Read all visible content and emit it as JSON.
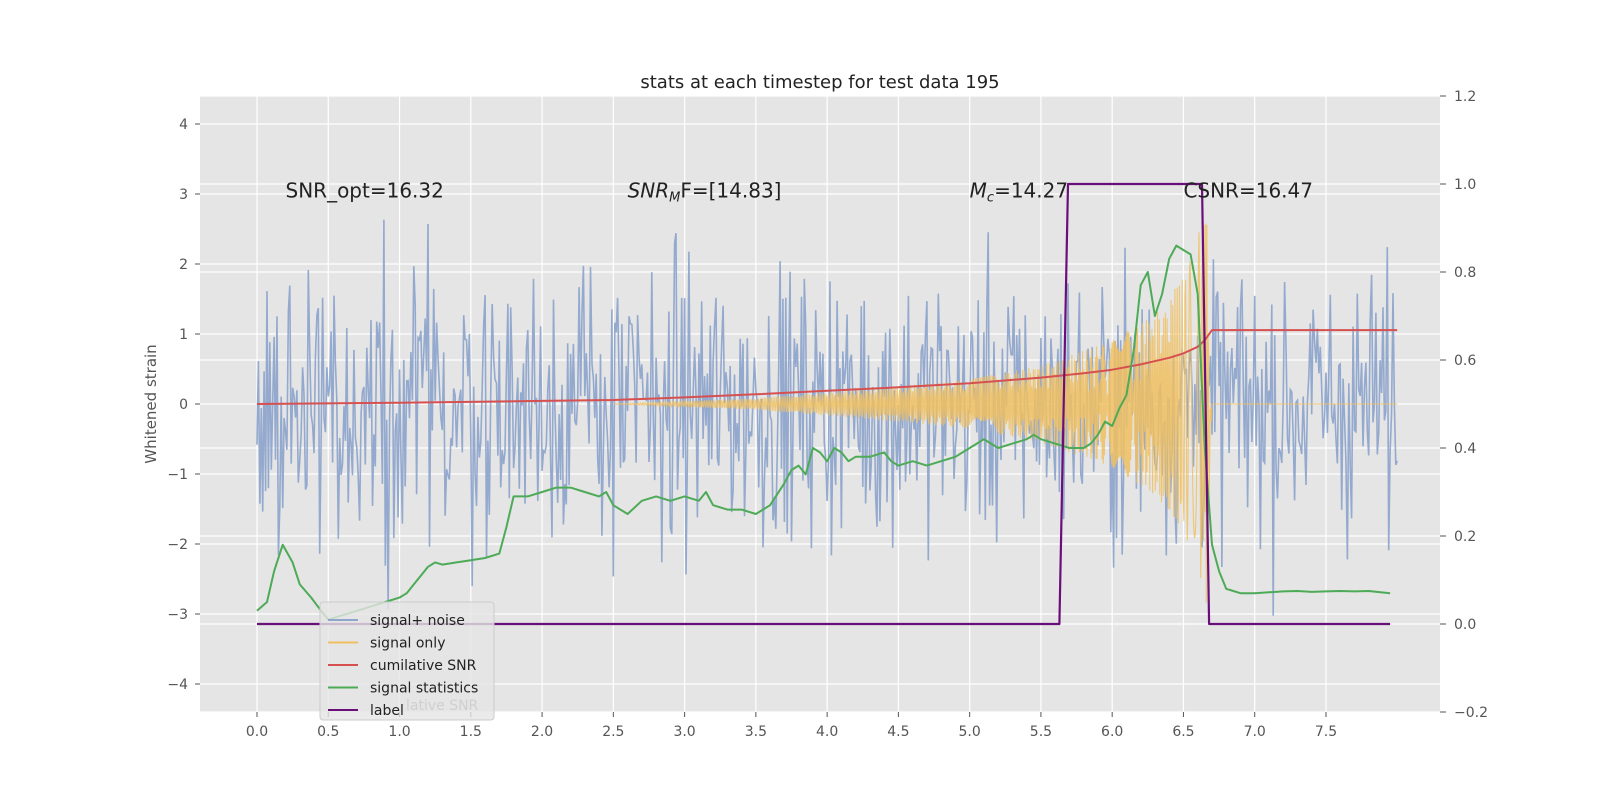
{
  "chart_data": {
    "type": "line",
    "title": "stats at each timestep for test data 195",
    "ylabel_left": "Whitened strain",
    "xlim": [
      -0.4,
      8.3
    ],
    "ylim_left": [
      -4.4,
      4.4
    ],
    "ylim_right": [
      -0.2,
      1.2
    ],
    "x_ticks": [
      0.0,
      0.5,
      1.0,
      1.5,
      2.0,
      2.5,
      3.0,
      3.5,
      4.0,
      4.5,
      5.0,
      5.5,
      6.0,
      6.5,
      7.0,
      7.5
    ],
    "x_tick_labels": [
      "0.0",
      "0.5",
      "1.0",
      "1.5",
      "2.0",
      "2.5",
      "3.0",
      "3.5",
      "4.0",
      "4.5",
      "5.0",
      "5.5",
      "6.0",
      "6.5",
      "7.0",
      "7.5"
    ],
    "y_left_ticks": [
      4,
      3,
      2,
      1,
      0,
      -1,
      -2,
      -3,
      -4
    ],
    "y_left_tick_labels": [
      "4",
      "3",
      "2",
      "1",
      "0",
      "−1",
      "−2",
      "−3",
      "−4"
    ],
    "y_right_ticks": [
      1.2,
      1.0,
      0.8,
      0.6,
      0.4,
      0.2,
      0.0,
      -0.2
    ],
    "y_right_tick_labels": [
      "1.2",
      "1.0",
      "0.8",
      "0.6",
      "0.4",
      "0.2",
      "0.0",
      "−0.2"
    ],
    "annotations": [
      {
        "text": "SNR_opt=16.32",
        "x": 0.2,
        "y": 3.05
      },
      {
        "text_main": "SNR",
        "text_sub": "M",
        "text_tail": "F=[14.83]",
        "x": 2.6,
        "y": 3.05
      },
      {
        "text_main": "M",
        "text_sub": "c",
        "text_tail": "=14.27",
        "x": 5.0,
        "y": 3.05
      },
      {
        "text": "CSNR=16.47",
        "x": 6.5,
        "y": 3.05
      }
    ],
    "legend_entries": [
      "signal+ noise",
      "signal only",
      "cumilative SNR",
      "signal statistics",
      "label"
    ],
    "legend_ghost_text": "lative SNR",
    "legend_location": "lower-left",
    "colors": {
      "signal_noise": "#8fa5cc",
      "signal_only": "#f0c060",
      "cumulative_snr": "#d65050",
      "signal_statistics": "#4daa57",
      "label": "#6a0f7a",
      "plot_bg": "#e5e5e5",
      "grid": "#ffffff"
    },
    "series": [
      {
        "name": "signal+ noise",
        "axis": "left",
        "x_range": [
          0.0,
          8.0
        ],
        "sample_count": 800,
        "amplitude": 1.0,
        "description": "whitened strain, unit-variance noise plus signal"
      },
      {
        "name": "signal only",
        "axis": "left",
        "description": "chirp growing toward merger",
        "x": [
          2.5,
          3.5,
          4.5,
          5.0,
          5.5,
          6.0,
          6.3,
          6.5,
          6.6,
          6.66,
          6.7,
          8.0
        ],
        "envelope": [
          0.0,
          0.08,
          0.25,
          0.35,
          0.55,
          0.9,
          1.3,
          1.8,
          2.4,
          2.9,
          0.0,
          0.0
        ]
      },
      {
        "name": "cumilative SNR",
        "axis": "right",
        "x": [
          0.0,
          1.0,
          2.0,
          2.5,
          3.0,
          3.5,
          4.0,
          4.5,
          5.0,
          5.5,
          5.8,
          6.0,
          6.2,
          6.4,
          6.5,
          6.6,
          6.65,
          6.7,
          7.0,
          7.5,
          8.0
        ],
        "values": [
          0.5,
          0.503,
          0.507,
          0.509,
          0.515,
          0.522,
          0.53,
          0.538,
          0.547,
          0.56,
          0.57,
          0.578,
          0.59,
          0.605,
          0.615,
          0.63,
          0.645,
          0.668,
          0.668,
          0.668,
          0.668
        ]
      },
      {
        "name": "signal statistics",
        "axis": "right",
        "x": [
          0.0,
          0.07,
          0.12,
          0.18,
          0.25,
          0.3,
          0.38,
          0.45,
          0.5,
          0.6,
          0.7,
          0.8,
          0.9,
          1.0,
          1.05,
          1.1,
          1.15,
          1.2,
          1.25,
          1.3,
          1.4,
          1.5,
          1.6,
          1.7,
          1.75,
          1.8,
          1.9,
          2.0,
          2.1,
          2.2,
          2.3,
          2.4,
          2.45,
          2.5,
          2.6,
          2.7,
          2.8,
          2.9,
          3.0,
          3.1,
          3.15,
          3.2,
          3.3,
          3.4,
          3.5,
          3.6,
          3.7,
          3.75,
          3.8,
          3.85,
          3.9,
          3.95,
          4.0,
          4.05,
          4.1,
          4.15,
          4.2,
          4.3,
          4.4,
          4.45,
          4.5,
          4.6,
          4.7,
          4.8,
          4.9,
          5.0,
          5.05,
          5.1,
          5.15,
          5.2,
          5.3,
          5.4,
          5.45,
          5.5,
          5.6,
          5.7,
          5.8,
          5.85,
          5.9,
          5.95,
          6.0,
          6.05,
          6.1,
          6.15,
          6.2,
          6.25,
          6.3,
          6.35,
          6.4,
          6.45,
          6.5,
          6.55,
          6.6,
          6.65,
          6.7,
          6.75,
          6.8,
          6.85,
          6.9,
          7.0,
          7.1,
          7.2,
          7.3,
          7.4,
          7.5,
          7.6,
          7.7,
          7.8,
          7.95
        ],
        "values": [
          0.03,
          0.05,
          0.12,
          0.18,
          0.14,
          0.09,
          0.06,
          0.03,
          0.01,
          0.02,
          0.03,
          0.04,
          0.05,
          0.06,
          0.07,
          0.09,
          0.11,
          0.13,
          0.14,
          0.135,
          0.14,
          0.145,
          0.15,
          0.16,
          0.22,
          0.29,
          0.29,
          0.3,
          0.31,
          0.31,
          0.3,
          0.29,
          0.3,
          0.27,
          0.25,
          0.28,
          0.29,
          0.28,
          0.29,
          0.28,
          0.3,
          0.27,
          0.26,
          0.26,
          0.25,
          0.27,
          0.32,
          0.35,
          0.36,
          0.34,
          0.4,
          0.39,
          0.37,
          0.4,
          0.39,
          0.37,
          0.38,
          0.38,
          0.39,
          0.37,
          0.36,
          0.37,
          0.36,
          0.37,
          0.38,
          0.4,
          0.41,
          0.42,
          0.41,
          0.4,
          0.41,
          0.42,
          0.43,
          0.42,
          0.41,
          0.4,
          0.4,
          0.41,
          0.43,
          0.46,
          0.45,
          0.49,
          0.52,
          0.62,
          0.77,
          0.8,
          0.7,
          0.75,
          0.83,
          0.86,
          0.85,
          0.84,
          0.75,
          0.4,
          0.18,
          0.12,
          0.08,
          0.075,
          0.07,
          0.07,
          0.072,
          0.074,
          0.075,
          0.073,
          0.074,
          0.075,
          0.074,
          0.075,
          0.07
        ]
      },
      {
        "name": "label",
        "axis": "right",
        "x": [
          0.0,
          5.63,
          5.69,
          6.63,
          6.68,
          7.95
        ],
        "values": [
          0.0,
          0.0,
          1.0,
          1.0,
          0.0,
          0.0
        ]
      }
    ]
  }
}
